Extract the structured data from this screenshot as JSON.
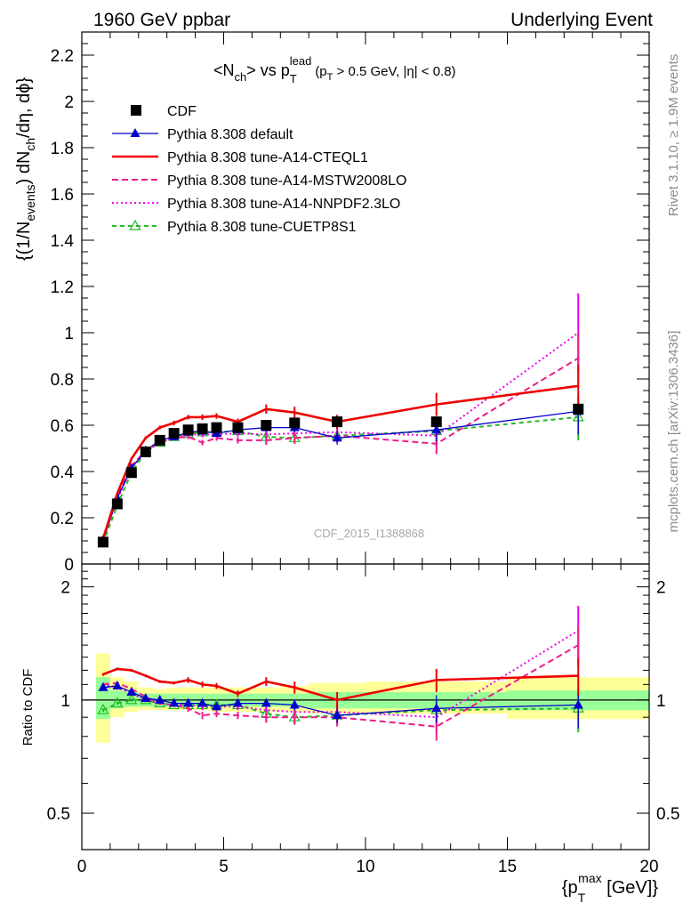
{
  "header": {
    "left": "1960 GeV ppbar",
    "right": "Underlying Event"
  },
  "side_labels": {
    "rivet": "Rivet 3.1.10, ≥ 1.9M events",
    "mcplots": "mcplots.cern.ch [arXiv:1306.3436]"
  },
  "watermark": "CDF_2015_I1388868",
  "plot_title": {
    "main": "<N",
    "main_sub": "ch",
    "vs": "> vs p",
    "vs_sub": "T",
    "vs_sup": "lead",
    "cuts": "(p",
    "cuts_sub": "T",
    "cuts_tail": " > 0.5 GeV, |η| < 0.8)"
  },
  "ylabel_main": {
    "p1": "{(1/N",
    "s1": "events",
    "p2": ") dN",
    "s2": "ch",
    "p3": "/dη, dϕ}"
  },
  "ylabel_ratio": "Ratio to CDF",
  "xlabel": {
    "p1": "{p",
    "sub": "T",
    "sup": "max",
    "p2": " [GeV]}"
  },
  "colors": {
    "data": "#000000",
    "default": "#0000cc",
    "cteql1": "#ee0000",
    "mstw": "#ee1c8c",
    "nnpdf": "#ee00ee",
    "cuetp": "#22bb22",
    "band_inner": "#99ff99",
    "band_outer": "#ffff99"
  },
  "chart_data": [
    {
      "type": "scatter",
      "title": "<Nch> vs pT lead (pT > 0.5 GeV, |η| < 0.8)",
      "xlabel": "{pT max [GeV]}",
      "ylabel": "{(1/Nevents) dNch/dη, dϕ}",
      "xlim": [
        0,
        20
      ],
      "ylim": [
        0,
        2.3
      ],
      "yticks": [
        "0",
        "0.2",
        "0.4",
        "0.6",
        "0.8",
        "1",
        "1.2",
        "1.4",
        "1.6",
        "1.8",
        "2",
        "2.2"
      ],
      "xticks": [
        "0",
        "5",
        "10",
        "15",
        "20"
      ],
      "legend": [
        "CDF",
        "Pythia 8.308 default",
        "Pythia 8.308 tune-A14-CTEQL1",
        "Pythia 8.308 tune-A14-MSTW2008LO",
        "Pythia 8.308 tune-A14-NNPDF2.3LO",
        "Pythia 8.308 tune-CUETP8S1"
      ],
      "legend_position": "top-left",
      "x": [
        0.75,
        1.25,
        1.75,
        2.25,
        2.75,
        3.25,
        3.75,
        4.25,
        4.75,
        5.5,
        6.5,
        7.5,
        9,
        12.5,
        17.5
      ],
      "data": {
        "values": [
          0.095,
          0.26,
          0.395,
          0.485,
          0.535,
          0.565,
          0.58,
          0.585,
          0.59,
          0.59,
          0.6,
          0.61,
          0.615,
          0.615,
          0.67
        ],
        "errors": [
          0.01,
          0.01,
          0.01,
          0.01,
          0.01,
          0.01,
          0.01,
          0.01,
          0.01,
          0.01,
          0.01,
          0.01,
          0.015,
          0.015,
          0.02
        ]
      },
      "series": [
        {
          "name": "Pythia 8.308 default",
          "key": "default",
          "marker": "triangle",
          "dash": "",
          "values": [
            0.105,
            0.285,
            0.415,
            0.49,
            0.535,
            0.55,
            0.57,
            0.575,
            0.565,
            0.58,
            0.59,
            0.59,
            0.545,
            0.58,
            0.66
          ],
          "errors": [
            0.005,
            0.005,
            0.005,
            0.006,
            0.008,
            0.008,
            0.01,
            0.01,
            0.01,
            0.012,
            0.015,
            0.02,
            0.03,
            0.05,
            0.1
          ]
        },
        {
          "name": "Pythia 8.308 tune-A14-CTEQL1",
          "key": "cteql1",
          "marker": "none",
          "dash": "",
          "values": [
            0.11,
            0.305,
            0.455,
            0.545,
            0.59,
            0.61,
            0.635,
            0.635,
            0.64,
            0.615,
            0.67,
            0.655,
            0.615,
            0.69,
            0.77
          ],
          "errors": [
            0.004,
            0.005,
            0.006,
            0.007,
            0.008,
            0.01,
            0.01,
            0.012,
            0.012,
            0.014,
            0.02,
            0.025,
            0.03,
            0.05,
            0.09
          ]
        },
        {
          "name": "Pythia 8.308 tune-A14-MSTW2008LO",
          "key": "mstw",
          "marker": "none",
          "dash": "7,4",
          "values": [
            0.105,
            0.29,
            0.425,
            0.49,
            0.525,
            0.545,
            0.55,
            0.525,
            0.545,
            0.535,
            0.535,
            0.545,
            0.555,
            0.52,
            0.89
          ],
          "errors": [
            0.004,
            0.005,
            0.006,
            0.007,
            0.008,
            0.01,
            0.01,
            0.012,
            0.012,
            0.014,
            0.02,
            0.025,
            0.03,
            0.045,
            0.11
          ]
        },
        {
          "name": "Pythia 8.308 tune-A14-NNPDF2.3LO",
          "key": "nnpdf",
          "marker": "none",
          "dash": "2,3",
          "values": [
            0.105,
            0.28,
            0.415,
            0.485,
            0.525,
            0.55,
            0.56,
            0.56,
            0.56,
            0.565,
            0.56,
            0.565,
            0.57,
            0.555,
            1.0
          ],
          "errors": [
            0.004,
            0.005,
            0.006,
            0.007,
            0.008,
            0.01,
            0.01,
            0.012,
            0.012,
            0.014,
            0.02,
            0.025,
            0.03,
            0.045,
            0.17
          ]
        },
        {
          "name": "Pythia 8.308 tune-CUETP8S1",
          "key": "cuetp",
          "marker": "triangle-open",
          "dash": "5,4",
          "values": [
            0.09,
            0.255,
            0.395,
            0.485,
            0.525,
            0.55,
            0.565,
            0.57,
            0.57,
            0.575,
            0.55,
            0.545,
            0.555,
            0.575,
            0.635
          ],
          "errors": [
            0.004,
            0.005,
            0.006,
            0.007,
            0.008,
            0.01,
            0.01,
            0.012,
            0.012,
            0.014,
            0.02,
            0.025,
            0.03,
            0.045,
            0.1
          ]
        }
      ]
    },
    {
      "type": "scatter",
      "title": "Ratio to CDF",
      "ylabel": "Ratio to CDF",
      "yscale": "log",
      "ylim": [
        0.4,
        2.3
      ],
      "yticks": [
        "0.5",
        "1",
        "2"
      ],
      "reference": 1,
      "band_edges": [
        0.5,
        1.0,
        1.5,
        2.0,
        2.5,
        3.0,
        3.5,
        4.0,
        4.5,
        5.0,
        6.0,
        7.0,
        8.0,
        10.0,
        15.0,
        20.0
      ],
      "band_inner": [
        [
          0.89,
          1.15
        ],
        [
          0.95,
          1.06
        ],
        [
          0.96,
          1.05
        ],
        [
          0.96,
          1.04
        ],
        [
          0.96,
          1.04
        ],
        [
          0.96,
          1.04
        ],
        [
          0.96,
          1.04
        ],
        [
          0.96,
          1.04
        ],
        [
          0.96,
          1.04
        ],
        [
          0.96,
          1.04
        ],
        [
          0.96,
          1.04
        ],
        [
          0.96,
          1.04
        ],
        [
          0.95,
          1.05
        ],
        [
          0.95,
          1.05
        ],
        [
          0.94,
          1.06
        ]
      ],
      "band_outer": [
        [
          0.77,
          1.33
        ],
        [
          0.9,
          1.15
        ],
        [
          0.93,
          1.12
        ],
        [
          0.94,
          1.08
        ],
        [
          0.94,
          1.07
        ],
        [
          0.94,
          1.08
        ],
        [
          0.94,
          1.08
        ],
        [
          0.94,
          1.08
        ],
        [
          0.93,
          1.08
        ],
        [
          0.93,
          1.08
        ],
        [
          0.93,
          1.08
        ],
        [
          0.93,
          1.09
        ],
        [
          0.92,
          1.11
        ],
        [
          0.92,
          1.12
        ],
        [
          0.89,
          1.15
        ]
      ],
      "series": [
        {
          "name": "Pythia 8.308 default",
          "key": "default",
          "marker": "triangle",
          "dash": "",
          "values": [
            1.08,
            1.09,
            1.05,
            1.01,
            1.0,
            0.98,
            0.98,
            0.98,
            0.96,
            0.98,
            0.98,
            0.97,
            0.91,
            0.95,
            0.97
          ],
          "errors": [
            0.01,
            0.01,
            0.01,
            0.01,
            0.01,
            0.01,
            0.02,
            0.02,
            0.02,
            0.02,
            0.02,
            0.03,
            0.04,
            0.08,
            0.13
          ]
        },
        {
          "name": "Pythia 8.308 tune-A14-CTEQL1",
          "key": "cteql1",
          "marker": "none",
          "dash": "",
          "values": [
            1.17,
            1.21,
            1.2,
            1.16,
            1.12,
            1.11,
            1.13,
            1.1,
            1.09,
            1.04,
            1.12,
            1.08,
            1.0,
            1.13,
            1.16
          ],
          "errors": [
            0.01,
            0.01,
            0.01,
            0.01,
            0.01,
            0.01,
            0.02,
            0.02,
            0.02,
            0.02,
            0.03,
            0.04,
            0.05,
            0.08,
            0.13
          ]
        },
        {
          "name": "Pythia 8.308 tune-A14-MSTW2008LO",
          "key": "mstw",
          "marker": "none",
          "dash": "7,4",
          "values": [
            1.1,
            1.11,
            1.07,
            1.02,
            0.98,
            0.97,
            0.95,
            0.91,
            0.92,
            0.91,
            0.9,
            0.9,
            0.9,
            0.85,
            1.4
          ],
          "errors": [
            0.01,
            0.01,
            0.01,
            0.01,
            0.01,
            0.01,
            0.02,
            0.02,
            0.02,
            0.02,
            0.03,
            0.04,
            0.05,
            0.07,
            0.17
          ]
        },
        {
          "name": "Pythia 8.308 tune-A14-NNPDF2.3LO",
          "key": "nnpdf",
          "marker": "none",
          "dash": "2,3",
          "values": [
            1.1,
            1.08,
            1.04,
            1.0,
            0.98,
            0.97,
            0.97,
            0.96,
            0.96,
            0.96,
            0.94,
            0.93,
            0.93,
            0.9,
            1.53
          ],
          "errors": [
            0.01,
            0.01,
            0.01,
            0.01,
            0.01,
            0.01,
            0.02,
            0.02,
            0.02,
            0.02,
            0.03,
            0.04,
            0.05,
            0.07,
            0.25
          ]
        },
        {
          "name": "Pythia 8.308 tune-CUETP8S1",
          "key": "cuetp",
          "marker": "triangle-open",
          "dash": "5,4",
          "values": [
            0.94,
            0.98,
            1.0,
            1.0,
            0.98,
            0.97,
            0.97,
            0.97,
            0.97,
            0.97,
            0.92,
            0.9,
            0.91,
            0.94,
            0.95
          ],
          "errors": [
            0.01,
            0.01,
            0.01,
            0.01,
            0.01,
            0.01,
            0.02,
            0.02,
            0.02,
            0.02,
            0.03,
            0.04,
            0.05,
            0.07,
            0.13
          ]
        }
      ]
    }
  ]
}
